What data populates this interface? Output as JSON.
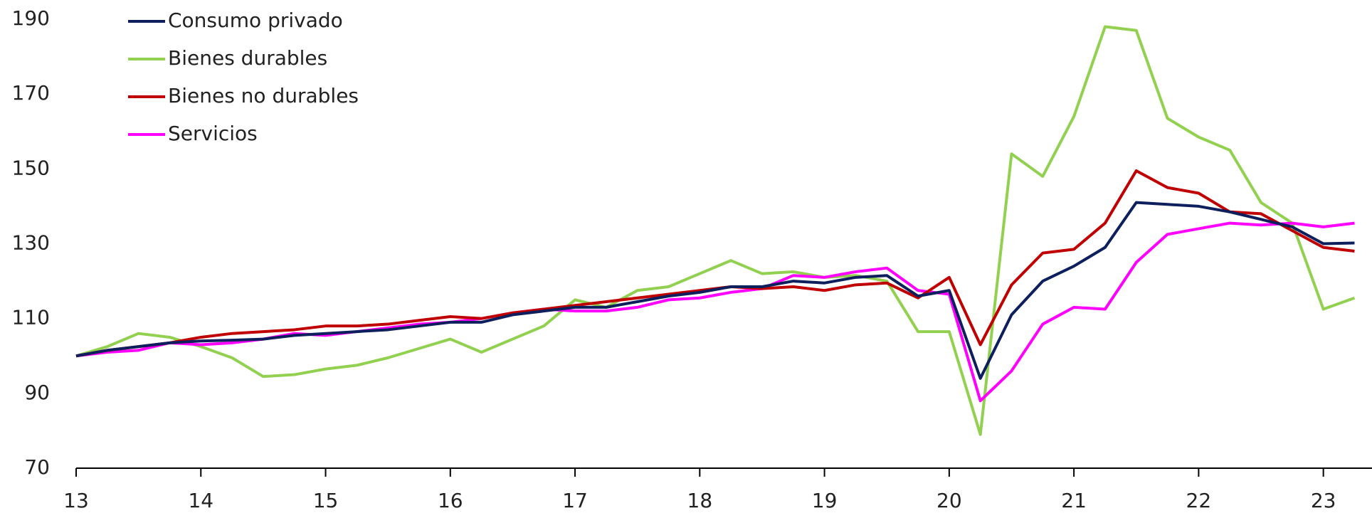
{
  "chart_data": {
    "type": "line",
    "x": [
      13,
      13.25,
      13.5,
      13.75,
      14,
      14.25,
      14.5,
      14.75,
      15,
      15.25,
      15.5,
      15.75,
      16,
      16.25,
      16.5,
      16.75,
      17,
      17.25,
      17.5,
      17.75,
      18,
      18.25,
      18.5,
      18.75,
      19,
      19.25,
      19.5,
      19.75,
      20,
      20.25,
      20.5,
      20.75,
      21,
      21.25,
      21.5,
      21.75,
      22,
      22.25,
      22.5,
      22.75,
      23,
      23.25
    ],
    "series": [
      {
        "name": "Consumo privado",
        "color": "#0d1f5c",
        "values": [
          100,
          101.5,
          102.5,
          103.5,
          104,
          104.2,
          104.5,
          105.5,
          106,
          106.5,
          107,
          108,
          109,
          109,
          111,
          112,
          113,
          113,
          114.5,
          116,
          117,
          118.5,
          118.5,
          120,
          119.5,
          121,
          121.5,
          116,
          117.5,
          94,
          111,
          120,
          124,
          129,
          141,
          140.5,
          140,
          138.5,
          136.5,
          134.5,
          130,
          130.2
        ]
      },
      {
        "name": "Bienes durables",
        "color": "#92d050",
        "values": [
          100,
          102.5,
          106,
          105,
          102.5,
          99.5,
          94.5,
          95,
          96.5,
          97.5,
          99.5,
          102,
          104.5,
          101,
          104.5,
          108,
          115,
          113,
          117.5,
          118.5,
          122,
          125.5,
          122,
          122.5,
          121,
          121.5,
          120,
          106.5,
          106.5,
          79,
          154,
          148,
          164,
          188,
          187,
          163.5,
          158.5,
          155,
          141,
          135.5,
          112.5,
          115.5
        ]
      },
      {
        "name": "Bienes no durables",
        "color": "#c00000",
        "values": [
          100,
          101.5,
          102.5,
          103.5,
          105,
          106,
          106.5,
          107,
          108,
          108,
          108.5,
          109.5,
          110.5,
          110,
          111.5,
          112.5,
          113.5,
          114.5,
          115.5,
          116.5,
          117.5,
          118.5,
          118,
          118.5,
          117.5,
          119,
          119.5,
          115.5,
          121,
          103,
          119,
          127.5,
          128.5,
          135.5,
          149.5,
          145,
          143.5,
          138.5,
          138,
          133.5,
          129,
          128
        ]
      },
      {
        "name": "Servicios",
        "color": "#ff00ff",
        "values": [
          100,
          101,
          101.5,
          103.5,
          103,
          103.5,
          104.5,
          106,
          105.5,
          106.5,
          107.5,
          108.5,
          109,
          110,
          111.5,
          112.5,
          112,
          112,
          113,
          115,
          115.5,
          117,
          118,
          121.5,
          121,
          122.5,
          123.5,
          117.5,
          116.5,
          88,
          96,
          108.5,
          113,
          112.5,
          125,
          132.5,
          134,
          135.5,
          135,
          135.5,
          134.5,
          135.5
        ]
      }
    ],
    "xlim": [
      13,
      23.39
    ],
    "xticks": [
      13,
      14,
      15,
      16,
      17,
      18,
      19,
      20,
      21,
      22,
      23
    ],
    "ylim": [
      70,
      190
    ],
    "yticks": [
      70,
      90,
      110,
      130,
      150,
      170,
      190
    ],
    "legend": "upper left",
    "grid": false
  }
}
